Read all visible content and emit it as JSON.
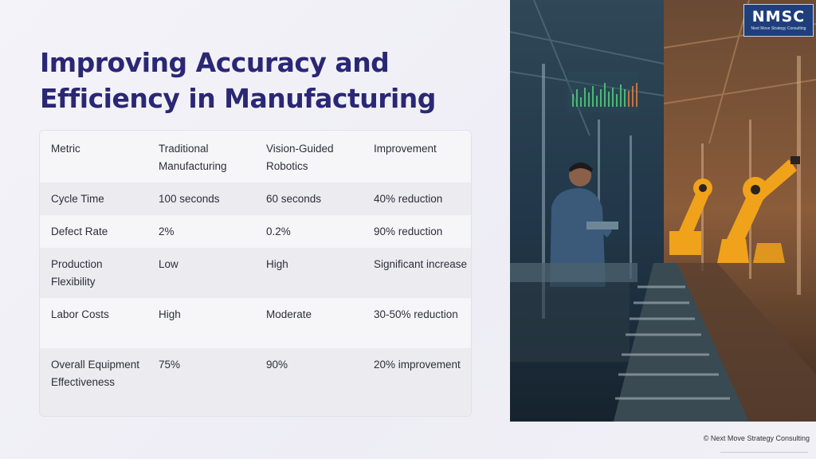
{
  "slide": {
    "title": "Improving Accuracy and Efficiency in Manufacturing",
    "footer": "© Next Move Strategy Consulting"
  },
  "logo": {
    "text": "NMSC",
    "tagline": "Next Move Strategy Consulting"
  },
  "table": {
    "headers": [
      "Metric",
      "Traditional Manufacturing",
      "Vision-Guided Robotics",
      "Improvement"
    ],
    "rows": [
      [
        "Cycle Time",
        "100 seconds",
        "60 seconds",
        "40% reduction"
      ],
      [
        "Defect Rate",
        "2%",
        "0.2%",
        "90% reduction"
      ],
      [
        "Production Flexibility",
        "Low",
        "High",
        "Significant increase"
      ],
      [
        "Labor Costs",
        "High",
        "Moderate",
        "30-50% reduction"
      ],
      [
        "Overall Equipment Effectiveness",
        "75%",
        "90%",
        "20% improvement"
      ]
    ]
  },
  "colors": {
    "title": "#2a2775",
    "logo_bg": "#1f3f7c",
    "photo_left_tint": "#1e3a4e",
    "photo_right_tint": "#8a5a36",
    "robot_orange": "#f0a21a"
  }
}
